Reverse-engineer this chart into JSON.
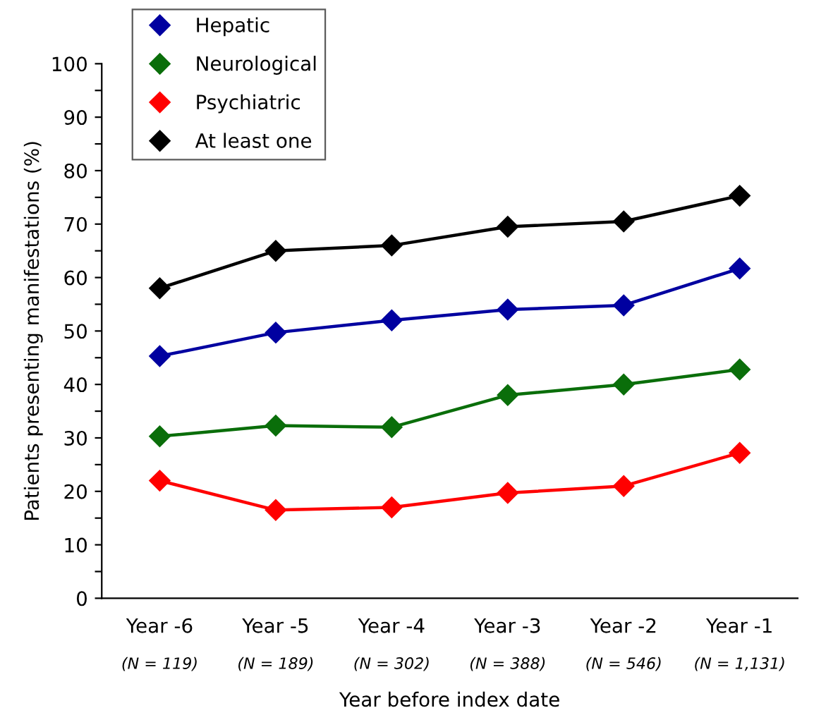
{
  "chart_data": {
    "type": "line",
    "xlabel": "Year before index date",
    "ylabel": "Patients presenting manifestations (%)",
    "categories": [
      "Year -6",
      "Year -5",
      "Year -4",
      "Year -3",
      "Year -2",
      "Year -1"
    ],
    "annotations": [
      "(N = 119)",
      "(N = 189)",
      "(N = 302)",
      "(N = 388)",
      "(N = 546)",
      "(N = 1,131)"
    ],
    "series": [
      {
        "name": "Hepatic",
        "color": "#0000a0",
        "values": [
          45.3,
          49.7,
          52,
          54,
          54.8,
          61.7
        ]
      },
      {
        "name": "Neurological",
        "color": "#0a6e0a",
        "values": [
          30.3,
          32.3,
          32,
          38,
          40,
          42.8
        ]
      },
      {
        "name": "Psychiatric",
        "color": "#ff0000",
        "values": [
          22,
          16.5,
          17,
          19.7,
          21,
          27.2
        ]
      },
      {
        "name": "At least one",
        "color": "#000000",
        "values": [
          58,
          65,
          66,
          69.5,
          70.5,
          75.3
        ]
      }
    ],
    "ylim": [
      0,
      100
    ],
    "yticks": [
      0,
      {
        "value": 5,
        "label": null
      },
      10,
      {
        "value": 15,
        "label": null
      },
      20,
      {
        "value": 25,
        "label": null
      },
      30,
      {
        "value": 35,
        "label": null
      },
      40,
      {
        "value": 45,
        "label": null
      },
      50,
      {
        "value": 55,
        "label": null
      },
      60,
      {
        "value": 65,
        "label": null
      },
      70,
      {
        "value": 75,
        "label": null
      },
      80,
      {
        "value": 85,
        "label": null
      },
      90,
      {
        "value": 95,
        "label": null
      },
      100
    ],
    "grid": false,
    "legend": "top left",
    "marker": "diamond",
    "line_style": "solid"
  }
}
